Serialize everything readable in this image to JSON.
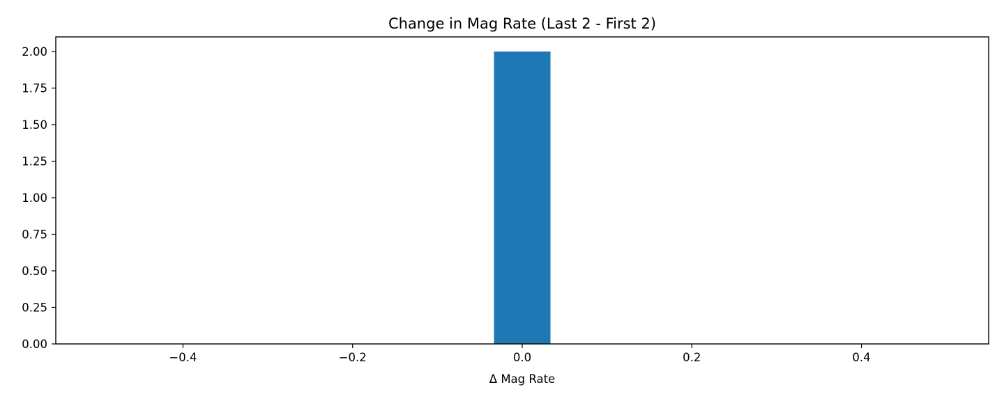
{
  "chart_data": {
    "type": "bar",
    "title": "Change in Mag Rate (Last 2 - First 2)",
    "xlabel": "Δ Mag Rate",
    "ylabel": "",
    "xlim": [
      -0.55,
      0.55
    ],
    "ylim": [
      0,
      2.1
    ],
    "grid": false,
    "bars": [
      {
        "x_start": -0.0333,
        "x_end": 0.0333,
        "value": 2
      }
    ],
    "x_ticks": [
      {
        "value": -0.4,
        "label": "−0.4"
      },
      {
        "value": -0.2,
        "label": "−0.2"
      },
      {
        "value": 0.0,
        "label": "0.0"
      },
      {
        "value": 0.2,
        "label": "0.2"
      },
      {
        "value": 0.4,
        "label": "0.4"
      }
    ],
    "y_ticks": [
      {
        "value": 0.0,
        "label": "0.00"
      },
      {
        "value": 0.25,
        "label": "0.25"
      },
      {
        "value": 0.5,
        "label": "0.50"
      },
      {
        "value": 0.75,
        "label": "0.75"
      },
      {
        "value": 1.0,
        "label": "1.00"
      },
      {
        "value": 1.25,
        "label": "1.25"
      },
      {
        "value": 1.5,
        "label": "1.50"
      },
      {
        "value": 1.75,
        "label": "1.75"
      },
      {
        "value": 2.0,
        "label": "2.00"
      }
    ],
    "bar_color": "#1f77b4",
    "axis_color": "#000000"
  }
}
